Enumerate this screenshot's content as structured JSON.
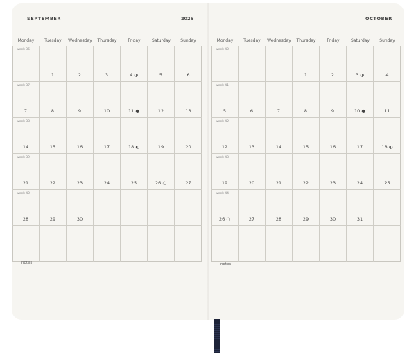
{
  "days": [
    "Monday",
    "Tuesday",
    "Wednesday",
    "Thursday",
    "Friday",
    "Saturday",
    "Sunday"
  ],
  "left": {
    "month": "SEPTEMBER",
    "year": "2026",
    "notes": "notes",
    "weeks": [
      "week 36",
      "week 37",
      "week 38",
      "week 39",
      "week 40",
      ""
    ],
    "rows": [
      [
        "",
        "1",
        "2",
        "3",
        "4 ◑",
        "5",
        "6"
      ],
      [
        "7",
        "8",
        "9",
        "10",
        "11 ●",
        "12",
        "13"
      ],
      [
        "14",
        "15",
        "16",
        "17",
        "18 ◐",
        "19",
        "20"
      ],
      [
        "21",
        "22",
        "23",
        "24",
        "25",
        "26 ○",
        "27"
      ],
      [
        "28",
        "29",
        "30",
        "",
        "",
        "",
        ""
      ],
      [
        "",
        "",
        "",
        "",
        "",
        "",
        ""
      ]
    ]
  },
  "right": {
    "month": "OCTOBER",
    "notes": "notes",
    "weeks": [
      "week 40",
      "week 41",
      "week 42",
      "week 43",
      "week 44",
      ""
    ],
    "rows": [
      [
        "",
        "",
        "",
        "1",
        "2",
        "3 ◑",
        "4"
      ],
      [
        "5",
        "6",
        "7",
        "8",
        "9",
        "10 ●",
        "11"
      ],
      [
        "12",
        "13",
        "14",
        "15",
        "16",
        "17",
        "18 ◐"
      ],
      [
        "19",
        "20",
        "21",
        "22",
        "23",
        "24",
        "25"
      ],
      [
        "26 ○",
        "27",
        "28",
        "29",
        "30",
        "31",
        ""
      ],
      [
        "",
        "",
        "",
        "",
        "",
        "",
        ""
      ]
    ]
  },
  "colors": {
    "paper": "#f6f5f1",
    "ribbon": "#1d2338"
  }
}
